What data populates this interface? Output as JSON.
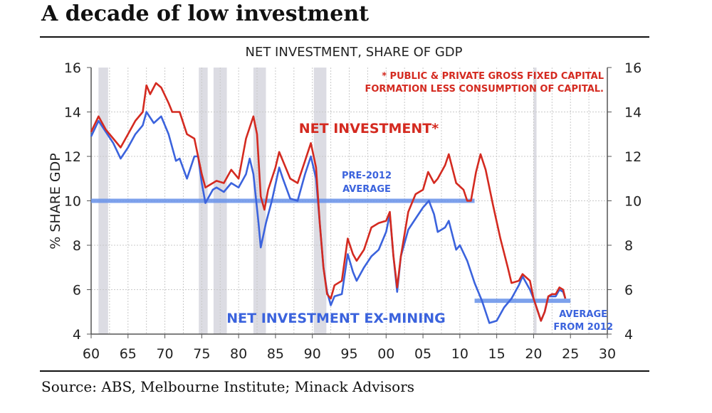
{
  "headline": "A decade of low investment",
  "source": "Source: ABS, Melbourne Institute; Minack Advisors",
  "chart_data": {
    "type": "line",
    "title": "NET INVESTMENT, SHARE OF GDP",
    "ylabel": "% SHARE GDP",
    "xlim": [
      1960,
      2030
    ],
    "ylim": [
      4,
      16
    ],
    "x_ticks": [
      "60",
      "65",
      "70",
      "75",
      "80",
      "85",
      "90",
      "95",
      "00",
      "05",
      "10",
      "15",
      "20",
      "25",
      "30"
    ],
    "y_ticks": [
      4,
      6,
      8,
      10,
      12,
      14,
      16
    ],
    "grid": true,
    "footnote": [
      "* PUBLIC & PRIVATE GROSS FIXED CAPITAL",
      "FORMATION LESS CONSUMPTION OF CAPITAL."
    ],
    "recession_bands": [
      [
        1961.0,
        1962.3
      ],
      [
        1974.6,
        1975.8
      ],
      [
        1976.6,
        1978.4
      ],
      [
        1982.0,
        1983.7
      ],
      [
        1990.2,
        1991.9
      ],
      [
        2020.0,
        2020.4
      ]
    ],
    "series": [
      {
        "name": "NET INVESTMENT*",
        "color": "#d42a20",
        "x": [
          1960,
          1961,
          1962,
          1963,
          1964,
          1965,
          1966,
          1967,
          1967.5,
          1968,
          1968.8,
          1969.5,
          1970.5,
          1971,
          1972,
          1973,
          1974,
          1975,
          1975.5,
          1976,
          1977,
          1978,
          1979,
          1980,
          1981,
          1982,
          1982.5,
          1983,
          1983.5,
          1984,
          1985,
          1985.5,
          1986,
          1987,
          1988,
          1989,
          1989.8,
          1990.5,
          1991,
          1991.5,
          1992,
          1992.5,
          1993,
          1994,
          1994.8,
          1995.5,
          1996,
          1997,
          1998,
          1999,
          2000,
          2000.5,
          2001,
          2001.5,
          2002,
          2003,
          2004,
          2005,
          2005.7,
          2006.5,
          2007,
          2008,
          2008.5,
          2009.5,
          2010.5,
          2011,
          2011.5,
          2012.2,
          2012.8,
          2013.5,
          2014.5,
          2015.5,
          2016.5,
          2017,
          2018,
          2018.5,
          2019.5,
          2020,
          2021,
          2021.5,
          2022,
          2022.5,
          2023,
          2023.5,
          2024,
          2024.3
        ],
        "y": [
          13.1,
          13.8,
          13.2,
          12.8,
          12.4,
          13.0,
          13.6,
          14.0,
          15.2,
          14.8,
          15.3,
          15.1,
          14.4,
          14.0,
          14.0,
          13.0,
          12.8,
          11.2,
          10.6,
          10.7,
          10.9,
          10.8,
          11.4,
          11.0,
          12.8,
          13.8,
          13.0,
          10.2,
          9.6,
          10.5,
          11.5,
          12.2,
          11.8,
          11.0,
          10.8,
          11.8,
          12.6,
          11.5,
          9.0,
          7.0,
          5.8,
          5.6,
          6.2,
          6.4,
          8.3,
          7.6,
          7.3,
          7.8,
          8.8,
          9.0,
          9.1,
          9.5,
          7.5,
          6.1,
          7.5,
          9.5,
          10.3,
          10.5,
          11.3,
          10.8,
          11.0,
          11.6,
          12.1,
          10.8,
          10.5,
          10.0,
          10.0,
          11.3,
          12.1,
          11.4,
          9.8,
          8.3,
          7.0,
          6.3,
          6.4,
          6.7,
          6.4,
          5.6,
          4.6,
          5.0,
          5.7,
          5.8,
          5.8,
          6.1,
          6.0,
          5.6
        ]
      },
      {
        "name": "NET INVESTMENT EX-MINING",
        "color": "#3b63dd",
        "x": [
          1960,
          1961,
          1962,
          1963,
          1964,
          1965,
          1966,
          1967,
          1967.5,
          1968.5,
          1969.5,
          1970.5,
          1971.5,
          1972,
          1973,
          1974,
          1974.5,
          1975,
          1975.5,
          1976.5,
          1977,
          1978,
          1979,
          1980,
          1981,
          1981.5,
          1982,
          1982.7,
          1983,
          1983.7,
          1984.5,
          1985.5,
          1986,
          1987,
          1988,
          1989,
          1989.8,
          1990.5,
          1991,
          1991.5,
          1992,
          1992.5,
          1993,
          1994,
          1994.8,
          1995.5,
          1996,
          1997,
          1998,
          1999,
          2000,
          2000.5,
          2001,
          2001.5,
          2002,
          2003,
          2004,
          2005,
          2005.8,
          2006.5,
          2007,
          2008,
          2008.5,
          2009.5,
          2010,
          2011,
          2012,
          2013,
          2014,
          2015,
          2016,
          2017,
          2018,
          2018.5,
          2019.5,
          2020,
          2021,
          2021.5,
          2022,
          2023,
          2023.5,
          2024,
          2024.3
        ],
        "y": [
          12.9,
          13.6,
          13.1,
          12.6,
          11.9,
          12.4,
          13.0,
          13.4,
          14.0,
          13.5,
          13.8,
          13.0,
          11.8,
          11.9,
          11.0,
          12.0,
          12.0,
          10.8,
          9.9,
          10.5,
          10.6,
          10.4,
          10.8,
          10.6,
          11.2,
          11.9,
          11.2,
          9.0,
          7.9,
          9.0,
          10.0,
          11.5,
          11.0,
          10.1,
          10.0,
          11.2,
          12.0,
          11.0,
          9.0,
          7.0,
          5.9,
          5.3,
          5.7,
          5.8,
          7.6,
          6.8,
          6.4,
          7.0,
          7.5,
          7.8,
          8.6,
          9.4,
          7.5,
          5.9,
          7.5,
          8.7,
          9.2,
          9.7,
          10.0,
          9.4,
          8.6,
          8.8,
          9.1,
          7.8,
          8.0,
          7.3,
          6.3,
          5.5,
          4.5,
          4.6,
          5.2,
          5.6,
          6.2,
          6.6,
          6.0,
          5.6,
          4.6,
          5.0,
          5.7,
          5.7,
          6.0,
          5.9,
          5.6
        ]
      }
    ],
    "reference_lines": [
      {
        "label": [
          "PRE-2012",
          "AVERAGE"
        ],
        "value": 10.0,
        "from": 1960,
        "to": 2012,
        "color": "#6f97ea"
      },
      {
        "label": [
          "AVERAGE",
          "FROM 2012"
        ],
        "value": 5.5,
        "from": 2012,
        "to": 2025,
        "color": "#6f97ea"
      }
    ]
  }
}
